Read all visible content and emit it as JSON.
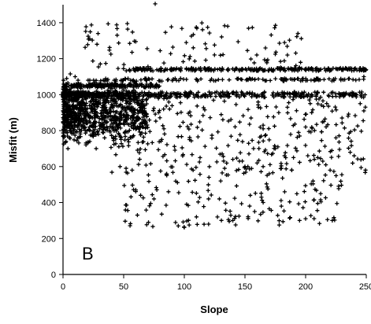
{
  "chart_data": {
    "type": "scatter",
    "title": "",
    "xlabel": "Slope",
    "ylabel": "Misfit (m)",
    "panel_label": "B",
    "xlim": [
      0,
      250
    ],
    "ylim": [
      0,
      1500
    ],
    "xticks": [
      0,
      50,
      100,
      150,
      200,
      250
    ],
    "yticks": [
      0,
      200,
      400,
      600,
      800,
      1000,
      1200,
      1400
    ],
    "grid": false,
    "legend": "none",
    "marker": "plus",
    "color": "#000000",
    "point_clusters": [
      {
        "region": "dense-core",
        "count": 900,
        "x_range": [
          0,
          70
        ],
        "y_range": [
          700,
          1080
        ],
        "y_center": 900
      },
      {
        "region": "dense-1000-band",
        "count": 500,
        "x_range": [
          0,
          250
        ],
        "y_range": [
          985,
          1015
        ],
        "density": "decreasing-with-x"
      },
      {
        "region": "band-1140",
        "count": 260,
        "x_range": [
          45,
          250
        ],
        "y_range": [
          1132,
          1148
        ]
      },
      {
        "region": "band-1050",
        "count": 160,
        "x_range": [
          0,
          80
        ],
        "y_range": [
          1040,
          1060
        ]
      },
      {
        "region": "band-1080",
        "count": 120,
        "x_range": [
          25,
          250
        ],
        "y_range": [
          1075,
          1090
        ]
      },
      {
        "region": "upper-scatter",
        "count": 90,
        "x_range": [
          15,
          200
        ],
        "y_range": [
          1150,
          1400
        ]
      },
      {
        "region": "mid-scatter",
        "count": 280,
        "x_range": [
          40,
          250
        ],
        "y_range": [
          550,
          980
        ]
      },
      {
        "region": "low-scatter",
        "count": 140,
        "x_range": [
          50,
          230
        ],
        "y_range": [
          260,
          600
        ]
      }
    ],
    "points": [
      [
        76,
        1505
      ],
      [
        53,
        1395
      ],
      [
        22,
        1310
      ],
      [
        28,
        1280
      ],
      [
        60,
        1295
      ],
      [
        55,
        1285
      ],
      [
        152,
        1245
      ],
      [
        175,
        1225
      ],
      [
        185,
        1220
      ],
      [
        6,
        1115
      ],
      [
        10,
        1100
      ],
      [
        3,
        1090
      ],
      [
        47,
        600
      ],
      [
        52,
        590
      ],
      [
        57,
        580
      ],
      [
        60,
        470
      ],
      [
        64,
        440
      ],
      [
        75,
        420
      ],
      [
        85,
        385
      ],
      [
        95,
        270
      ],
      [
        100,
        262
      ],
      [
        104,
        275
      ],
      [
        110,
        320
      ],
      [
        120,
        280
      ],
      [
        140,
        300
      ],
      [
        158,
        350
      ],
      [
        165,
        400
      ],
      [
        170,
        365
      ],
      [
        180,
        380
      ],
      [
        195,
        300
      ],
      [
        200,
        310
      ],
      [
        210,
        395
      ],
      [
        218,
        305
      ],
      [
        222,
        300
      ],
      [
        210,
        650
      ],
      [
        240,
        660
      ],
      [
        248,
        910
      ],
      [
        235,
        880
      ],
      [
        225,
        760
      ],
      [
        200,
        820
      ],
      [
        190,
        650
      ],
      [
        180,
        590
      ],
      [
        170,
        560
      ],
      [
        160,
        620
      ],
      [
        150,
        600
      ],
      [
        140,
        640
      ],
      [
        130,
        520
      ],
      [
        120,
        420
      ],
      [
        230,
        870
      ],
      [
        245,
        950
      ],
      [
        242,
        1000
      ],
      [
        248,
        1100
      ],
      [
        238,
        1145
      ],
      [
        215,
        850
      ],
      [
        205,
        900
      ],
      [
        195,
        770
      ],
      [
        185,
        930
      ],
      [
        175,
        700
      ],
      [
        165,
        810
      ],
      [
        155,
        870
      ]
    ]
  }
}
